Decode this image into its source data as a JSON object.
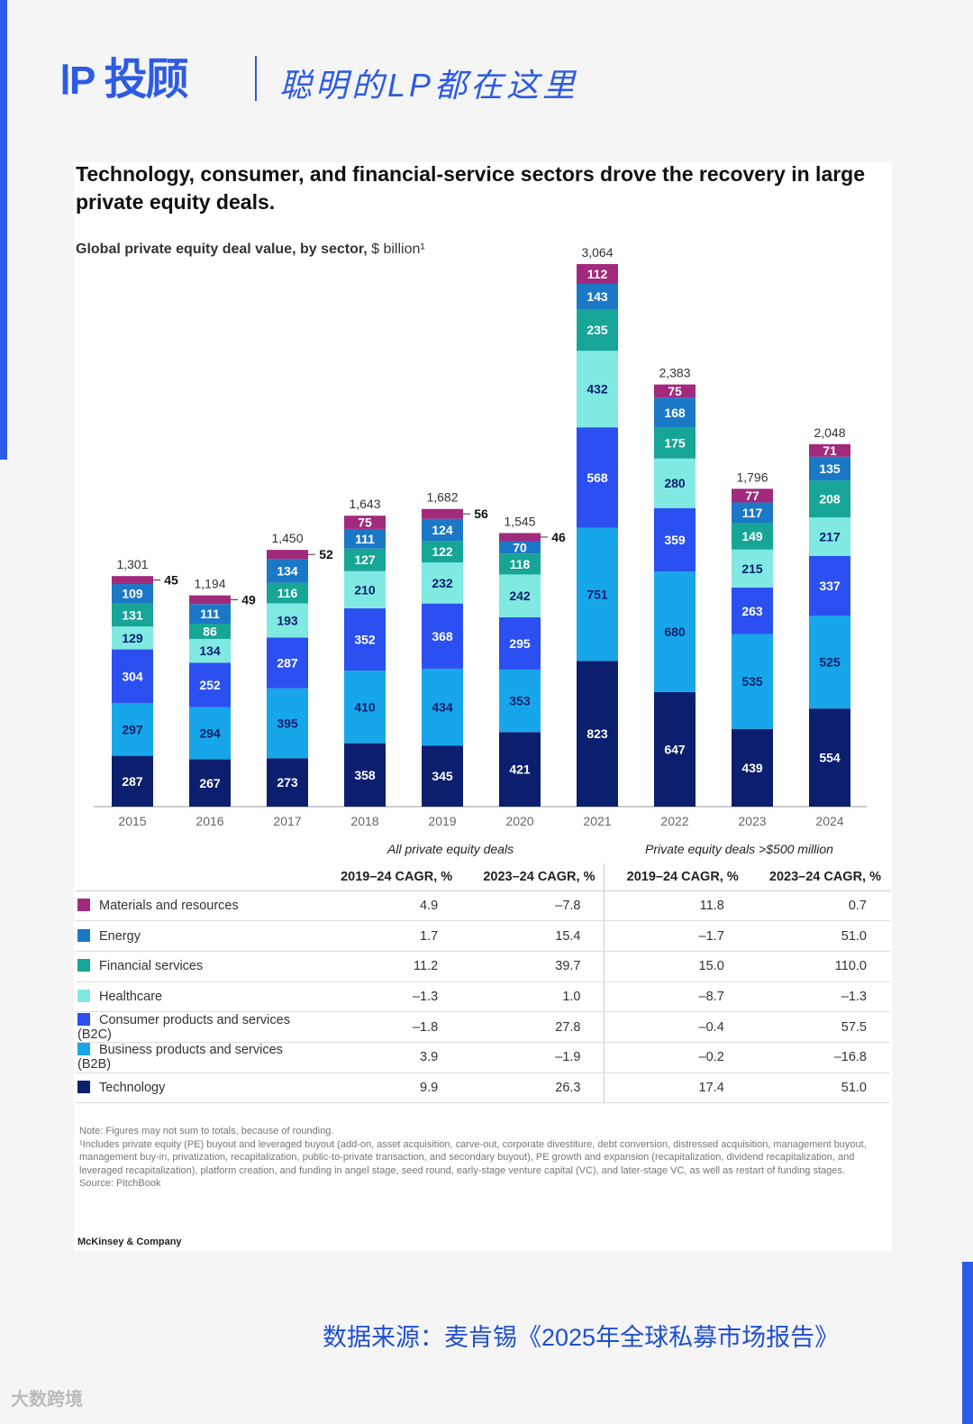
{
  "header": {
    "logo_text": "投顾",
    "slogan": "聪明的LP都在这里"
  },
  "chart_data": {
    "type": "bar",
    "stacked": true,
    "title": "Technology, consumer, and financial-service sectors drove the recovery in large private equity deals.",
    "subtitle_bold": "Global private equity deal value, by sector,",
    "subtitle_unit": "$ billion¹",
    "categories": [
      "2015",
      "2016",
      "2017",
      "2018",
      "2019",
      "2020",
      "2021",
      "2022",
      "2023",
      "2024"
    ],
    "totals": [
      "1,301",
      "1,194",
      "1,450",
      "1,643",
      "1,682",
      "1,545",
      "3,064",
      "2,383",
      "1,796",
      "2,048"
    ],
    "series": [
      {
        "name": "Technology",
        "color": "#0c1f6e",
        "values": [
          287,
          267,
          273,
          358,
          345,
          421,
          823,
          647,
          439,
          554
        ]
      },
      {
        "name": "Business products and services (B2B)",
        "color": "#17a6ea",
        "values": [
          297,
          294,
          395,
          410,
          434,
          353,
          751,
          680,
          535,
          525
        ]
      },
      {
        "name": "Consumer products and services (B2C)",
        "color": "#2b4ff0",
        "values": [
          304,
          252,
          287,
          352,
          368,
          295,
          568,
          359,
          263,
          337
        ]
      },
      {
        "name": "Healthcare",
        "color": "#7fe9e2",
        "values": [
          129,
          134,
          193,
          210,
          232,
          242,
          432,
          280,
          215,
          217
        ]
      },
      {
        "name": "Financial services",
        "color": "#16a596",
        "values": [
          131,
          86,
          116,
          127,
          122,
          118,
          235,
          175,
          149,
          208
        ]
      },
      {
        "name": "Energy",
        "color": "#1b78c6",
        "values": [
          109,
          111,
          134,
          111,
          124,
          70,
          143,
          168,
          117,
          135
        ]
      },
      {
        "name": "Materials and resources",
        "color": "#a12a7d",
        "values": [
          45,
          49,
          52,
          75,
          56,
          46,
          112,
          75,
          77,
          71
        ]
      }
    ],
    "ylim": [
      0,
      3064
    ]
  },
  "table": {
    "group_all": "All private equity deals",
    "group_large": "Private equity deals >$500 million",
    "headers": [
      "2019–24 CAGR, %",
      "2023–24 CAGR, %",
      "2019–24 CAGR, %",
      "2023–24 CAGR, %"
    ],
    "rows": [
      {
        "label": "Materials and resources",
        "color": "#a12a7d",
        "values": [
          "4.9",
          "–7.8",
          "11.8",
          "0.7"
        ]
      },
      {
        "label": "Energy",
        "color": "#1b78c6",
        "values": [
          "1.7",
          "15.4",
          "–1.7",
          "51.0"
        ]
      },
      {
        "label": "Financial services",
        "color": "#16a596",
        "values": [
          "11.2",
          "39.7",
          "15.0",
          "110.0"
        ]
      },
      {
        "label": "Healthcare",
        "color": "#7fe9e2",
        "values": [
          "–1.3",
          "1.0",
          "–8.7",
          "–1.3"
        ]
      },
      {
        "label": "Consumer products and services (B2C)",
        "color": "#2b4ff0",
        "values": [
          "–1.8",
          "27.8",
          "–0.4",
          "57.5"
        ]
      },
      {
        "label": "Business products and services (B2B)",
        "color": "#17a6ea",
        "values": [
          "3.9",
          "–1.9",
          "–0.2",
          "–16.8"
        ]
      },
      {
        "label": "Technology",
        "color": "#0c1f6e",
        "values": [
          "9.9",
          "26.3",
          "17.4",
          "51.0"
        ]
      }
    ]
  },
  "notes": {
    "note": "Note: Figures may not sum to totals, because of rounding.",
    "footnote": "¹Includes private equity (PE) buyout and leveraged buyout (add-on, asset acquisition, carve-out, corporate divestiture, debt conversion, distressed acquisition, management buyout, management buy-in, privatization, recapitalization, public-to-private transaction, and secondary buyout), PE growth and expansion (recapitalization, dividend recapitalization, and leveraged recapitalization), platform creation, and funding in angel stage, seed round, early-stage venture capital (VC), and later-stage VC, as well as restart of funding stages.",
    "source": "Source: PitchBook",
    "brand": "McKinsey & Company"
  },
  "footer": {
    "source": "数据来源：麦肯锡《2025年全球私募市场报告》",
    "watermark": "大数跨境"
  }
}
